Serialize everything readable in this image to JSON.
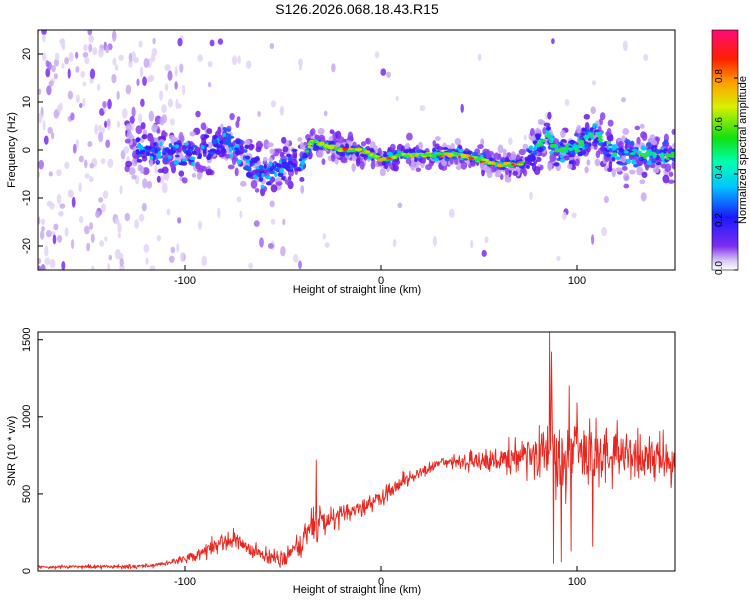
{
  "title": "S126.2026.068.18.43.R15",
  "chart_data": [
    {
      "type": "heatmap",
      "name": "spectrogram",
      "xlabel": "Height of straight line (km)",
      "ylabel": "Frequency (Hz)",
      "xlim": [
        -175,
        150
      ],
      "ylim": [
        -25,
        25
      ],
      "xticks": [
        -100,
        0,
        100
      ],
      "yticks": [
        -20,
        -10,
        0,
        10,
        20
      ],
      "track": {
        "x": [
          -120,
          -110,
          -100,
          -90,
          -80,
          -70,
          -60,
          -50,
          -40,
          -35,
          -30,
          -20,
          -10,
          0,
          10,
          20,
          30,
          40,
          50,
          60,
          70,
          75,
          80,
          85,
          90,
          100,
          105,
          110,
          115,
          120,
          130,
          140,
          150
        ],
        "y": [
          0,
          0,
          -1,
          0,
          2,
          -1,
          -5,
          -3,
          -2,
          2,
          1,
          0,
          0,
          -2,
          -1,
          -1,
          -1,
          -1,
          -2,
          -3,
          -3,
          -2,
          1,
          3,
          0,
          0,
          3,
          3,
          1,
          -1,
          -1,
          -1,
          -1
        ]
      },
      "colorbar": {
        "label": "Normalized spectral amplitude",
        "ticks": [
          "0.0",
          "0.2",
          "0.4",
          "0.6",
          "0.8"
        ],
        "range": [
          0,
          1
        ]
      }
    },
    {
      "type": "line",
      "name": "snr",
      "color": "#e8261e",
      "xlabel": "Height of straight line (km)",
      "ylabel": "SNR (10 * v/v)",
      "xlim": [
        -175,
        150
      ],
      "ylim": [
        0,
        1550
      ],
      "xticks": [
        -100,
        0,
        100
      ],
      "yticks": [
        0,
        500,
        1000,
        1500
      ],
      "envelope": {
        "x": [
          -175,
          -120,
          -110,
          -100,
          -90,
          -85,
          -80,
          -75,
          -70,
          -60,
          -50,
          -45,
          -40,
          -35,
          -30,
          -25,
          -20,
          -10,
          0,
          10,
          20,
          30,
          40,
          50,
          60,
          70,
          80,
          85,
          88,
          90,
          95,
          100,
          105,
          110,
          120,
          130,
          140,
          150
        ],
        "y": [
          25,
          30,
          50,
          80,
          130,
          165,
          185,
          200,
          160,
          100,
          80,
          120,
          200,
          310,
          330,
          340,
          360,
          400,
          480,
          570,
          640,
          700,
          720,
          720,
          730,
          750,
          740,
          820,
          900,
          760,
          720,
          780,
          770,
          740,
          760,
          760,
          740,
          720
        ]
      },
      "spread": {
        "x": [
          -175,
          -110,
          -80,
          -60,
          -45,
          -35,
          -30,
          -20,
          0,
          30,
          60,
          80,
          90,
          100,
          130,
          150
        ],
        "y": [
          10,
          15,
          60,
          50,
          60,
          160,
          110,
          70,
          60,
          30,
          100,
          160,
          300,
          200,
          160,
          140
        ]
      },
      "spikes": [
        {
          "x": -33,
          "y": 720
        },
        {
          "x": 86,
          "y": 1550
        },
        {
          "x": 87,
          "y": 1420
        },
        {
          "x": 96,
          "y": 1200
        },
        {
          "x": 100,
          "y": 1090
        }
      ],
      "dips": [
        {
          "x": 88,
          "y": 50
        },
        {
          "x": 92,
          "y": 60
        },
        {
          "x": 97,
          "y": 130
        },
        {
          "x": 108,
          "y": 160
        },
        {
          "x": 148,
          "y": 540
        }
      ]
    }
  ]
}
